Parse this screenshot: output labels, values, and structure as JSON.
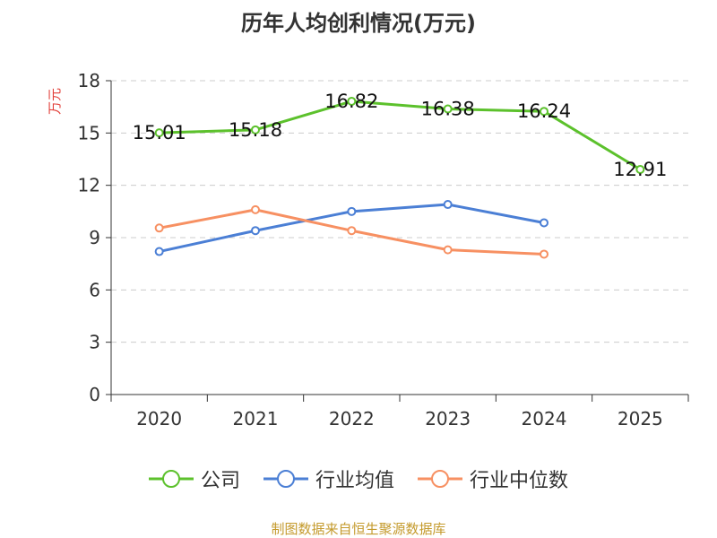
{
  "chart_data": {
    "type": "line",
    "title": "历年人均创利情况(万元)",
    "xlabel": "",
    "ylabel": "万元",
    "categories": [
      "2020",
      "2021",
      "2022",
      "2023",
      "2024",
      "2025"
    ],
    "ylim": [
      0,
      18
    ],
    "yticks": [
      0,
      3,
      6,
      9,
      12,
      15,
      18
    ],
    "grid": true,
    "legend_position": "bottom",
    "series": [
      {
        "name": "公司",
        "color": "#5cc12c",
        "values": [
          15.01,
          15.18,
          16.82,
          16.38,
          16.24,
          12.91
        ],
        "labels": [
          "15.01",
          "15.18",
          "16.82",
          "16.38",
          "16.24",
          "12.91"
        ]
      },
      {
        "name": "行业均值",
        "color": "#4b7fd5",
        "values": [
          8.2,
          9.4,
          10.5,
          10.9,
          9.85,
          null
        ]
      },
      {
        "name": "行业中位数",
        "color": "#f79062",
        "values": [
          9.55,
          10.6,
          9.4,
          8.3,
          8.05,
          null
        ]
      }
    ]
  },
  "footer": "制图数据来自恒生聚源数据库"
}
